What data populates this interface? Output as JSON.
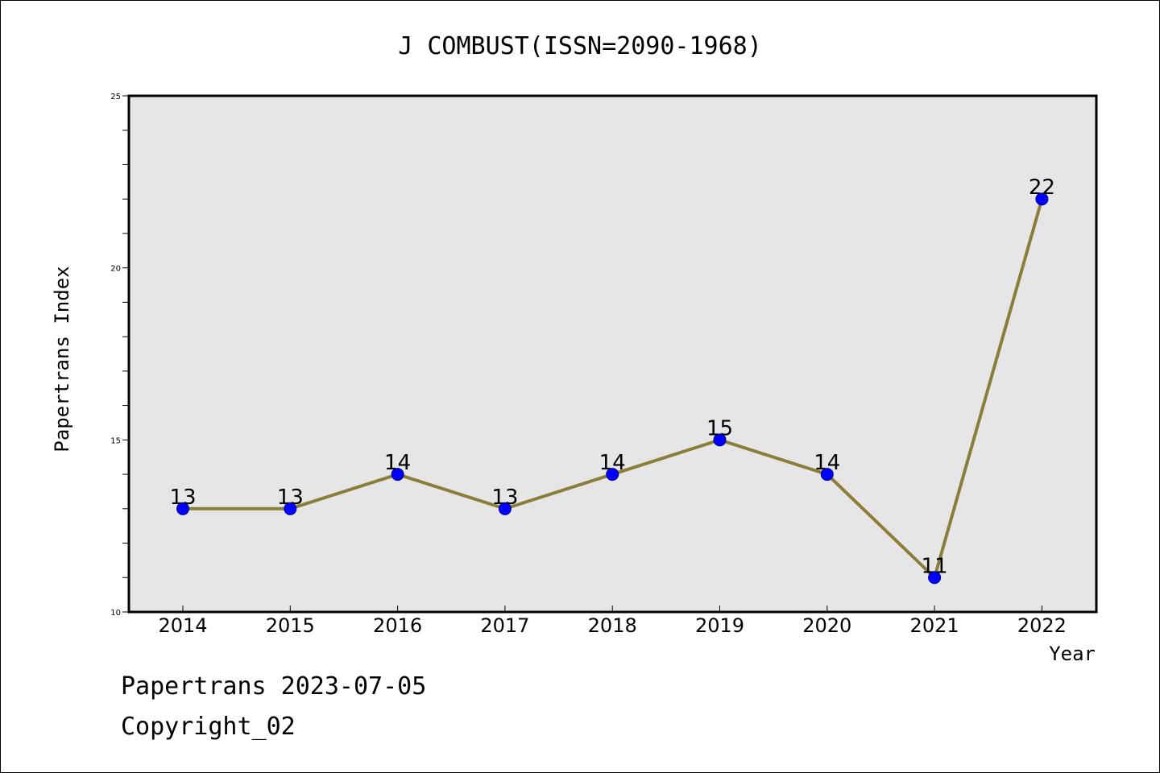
{
  "chart_data": {
    "type": "line",
    "title": "J COMBUST(ISSN=2090-1968)",
    "xlabel": "Year",
    "ylabel": "Papertrans Index",
    "categories": [
      "2014",
      "2015",
      "2016",
      "2017",
      "2018",
      "2019",
      "2020",
      "2021",
      "2022"
    ],
    "series": [
      {
        "values": [
          13,
          13,
          14,
          13,
          14,
          15,
          14,
          11,
          22
        ]
      }
    ],
    "data_labels": [
      "13",
      "13",
      "14",
      "13",
      "14",
      "15",
      "14",
      "11",
      "22"
    ],
    "ylim": [
      10,
      25
    ],
    "yticks": [
      "10",
      "15",
      "20",
      "25"
    ],
    "y_minor_step": 1,
    "grid": false,
    "legend": "none",
    "colors": {
      "plot_background": "#e6e6e6",
      "line": "#8b7d3a",
      "marker_fill": "#0000ff",
      "marker_edge": "#00008b"
    }
  },
  "footer": {
    "date_line": "Papertrans 2023-07-05",
    "copyright": "Copyright_02"
  }
}
